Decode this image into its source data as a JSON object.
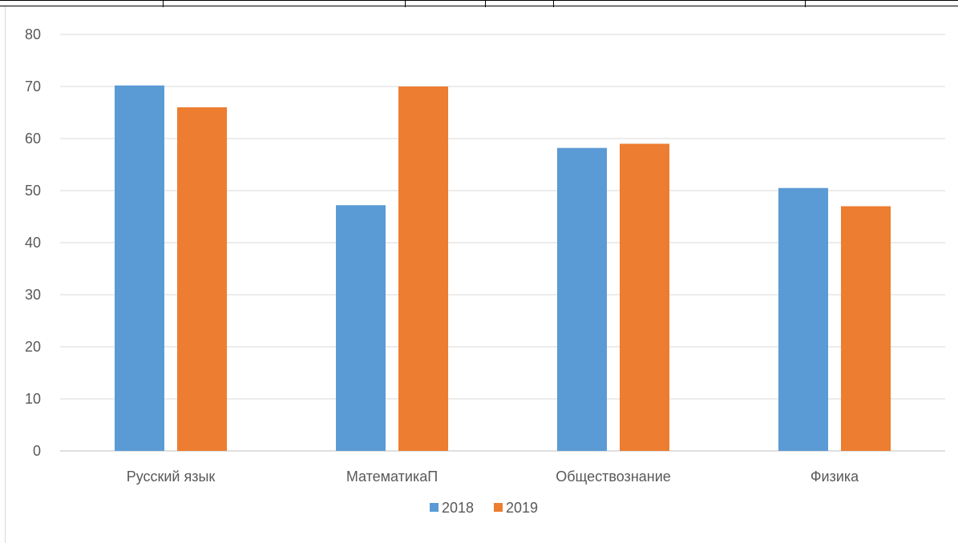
{
  "chart_data": {
    "type": "bar",
    "categories": [
      "Русский язык",
      "МатематикаП",
      "Обществознание",
      "Физика"
    ],
    "series": [
      {
        "name": "2018",
        "values": [
          70.2,
          47.2,
          58.2,
          50.5
        ],
        "color": "#5b9bd5"
      },
      {
        "name": "2019",
        "values": [
          66,
          70,
          59,
          47
        ],
        "color": "#ed7d31"
      }
    ],
    "ylim": [
      0,
      80
    ],
    "yticks": [
      "0",
      "10",
      "20",
      "30",
      "40",
      "50",
      "60",
      "70",
      "80"
    ],
    "grid": true,
    "legend_position": "bottom-center",
    "title": "",
    "xlabel": "",
    "ylabel": ""
  }
}
